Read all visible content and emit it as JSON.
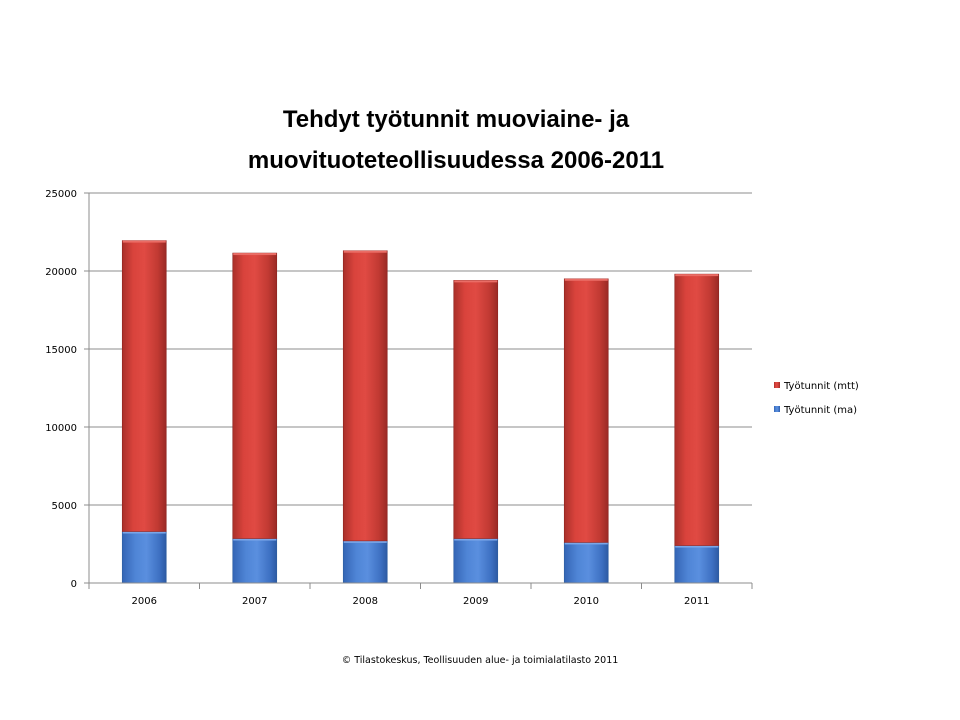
{
  "chart_data": {
    "type": "bar",
    "stacked": true,
    "title_lines": [
      "Tehdyt työtunnit muoviaine- ja",
      "muovituoteteollisuudessa 2006-2011"
    ],
    "categories": [
      "2006",
      "2007",
      "2008",
      "2009",
      "2010",
      "2011"
    ],
    "series": [
      {
        "name": "Työtunnit (ma)",
        "values": [
          3300,
          2850,
          2700,
          2850,
          2600,
          2400
        ],
        "color": "#4a7ed0"
      },
      {
        "name": "Työtunnit (mtt)",
        "values": [
          18650,
          18300,
          18600,
          16550,
          16900,
          17400
        ],
        "color": "#c0392b"
      }
    ],
    "ylim": [
      0,
      25000
    ],
    "yticks": [
      "0",
      "5000",
      "10000",
      "15000",
      "20000",
      "25000"
    ],
    "grid": true,
    "legend_position": "right",
    "legend_order": [
      "Työtunnit (mtt)",
      "Työtunnit (ma)"
    ]
  },
  "footer": "© Tilastokeskus, Teollisuuden alue- ja toimialatilasto 2011"
}
